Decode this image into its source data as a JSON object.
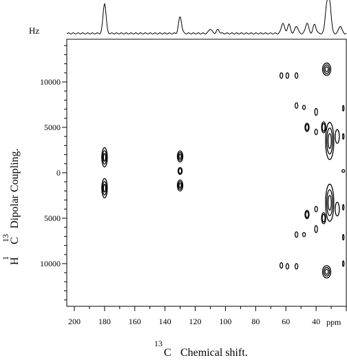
{
  "chart_data": {
    "type": "contour",
    "xaxis": {
      "label_sup": "13",
      "label_element": "C",
      "label_text": "Chemical shift.",
      "unit": "ppm",
      "range": [
        205,
        20
      ],
      "ticks": [
        200,
        180,
        160,
        140,
        120,
        100,
        80,
        60,
        40
      ]
    },
    "yaxis": {
      "label_sup1": "1",
      "label_el1": "H",
      "label_sup2": "13",
      "label_el2": "C",
      "label_text": "Dipolar Coupling.",
      "unit": "Hz",
      "range": [
        -14700,
        14700
      ],
      "ticks": [
        10000,
        5000,
        0,
        -5000,
        -10000
      ],
      "tick_labels": [
        "10000",
        "5000",
        "0",
        "5000",
        "10000"
      ]
    },
    "projection_unit_label": "Hz",
    "projection_peaks": [
      {
        "ppm": 180,
        "height": 1.0
      },
      {
        "ppm": 130,
        "height": 0.55
      },
      {
        "ppm": 110,
        "height": 0.15
      },
      {
        "ppm": 105,
        "height": 0.12
      },
      {
        "ppm": 62,
        "height": 0.35
      },
      {
        "ppm": 58,
        "height": 0.3
      },
      {
        "ppm": 53,
        "height": 0.25
      },
      {
        "ppm": 46,
        "height": 0.35
      },
      {
        "ppm": 41,
        "height": 0.3
      },
      {
        "ppm": 33,
        "height": 0.9
      },
      {
        "ppm": 31,
        "height": 1.0
      },
      {
        "ppm": 24,
        "height": 0.25
      }
    ],
    "contour_peaks": [
      {
        "ppm": 180,
        "hz": 1700,
        "rx": 4,
        "ry": 14,
        "levels": 3
      },
      {
        "ppm": 180,
        "hz": -1700,
        "rx": 4,
        "ry": 14,
        "levels": 3
      },
      {
        "ppm": 130,
        "hz": 1800,
        "rx": 4,
        "ry": 8,
        "levels": 3
      },
      {
        "ppm": 130,
        "hz": 200,
        "rx": 3,
        "ry": 5,
        "levels": 2
      },
      {
        "ppm": 130,
        "hz": -1400,
        "rx": 4,
        "ry": 8,
        "levels": 3
      },
      {
        "ppm": 63,
        "hz": 10700,
        "rx": 2,
        "ry": 4,
        "levels": 1
      },
      {
        "ppm": 59,
        "hz": 10700,
        "rx": 2,
        "ry": 4,
        "levels": 1
      },
      {
        "ppm": 53,
        "hz": 10700,
        "rx": 2,
        "ry": 4,
        "levels": 1
      },
      {
        "ppm": 33,
        "hz": 11400,
        "rx": 6,
        "ry": 9,
        "levels": 3
      },
      {
        "ppm": 53,
        "hz": 7400,
        "rx": 2,
        "ry": 4,
        "levels": 1
      },
      {
        "ppm": 48,
        "hz": 7200,
        "rx": 2,
        "ry": 3,
        "levels": 1
      },
      {
        "ppm": 40,
        "hz": 6700,
        "rx": 2,
        "ry": 5,
        "levels": 1
      },
      {
        "ppm": 46,
        "hz": 5000,
        "rx": 3,
        "ry": 6,
        "levels": 2
      },
      {
        "ppm": 40,
        "hz": 4500,
        "rx": 2,
        "ry": 4,
        "levels": 1
      },
      {
        "ppm": 35,
        "hz": 5000,
        "rx": 3,
        "ry": 8,
        "levels": 2
      },
      {
        "ppm": 31,
        "hz": 3500,
        "rx": 6,
        "ry": 27,
        "levels": 3
      },
      {
        "ppm": 26,
        "hz": 4000,
        "rx": 3,
        "ry": 10,
        "levels": 1
      },
      {
        "ppm": 22,
        "hz": 7100,
        "rx": 1,
        "ry": 4,
        "levels": 1
      },
      {
        "ppm": 22,
        "hz": 4000,
        "rx": 1,
        "ry": 4,
        "levels": 1
      },
      {
        "ppm": 22,
        "hz": 200,
        "rx": 2,
        "ry": 2,
        "levels": 1
      },
      {
        "ppm": 31,
        "hz": -3300,
        "rx": 6,
        "ry": 27,
        "levels": 3
      },
      {
        "ppm": 26,
        "hz": -4000,
        "rx": 3,
        "ry": 10,
        "levels": 1
      },
      {
        "ppm": 22,
        "hz": -3800,
        "rx": 1,
        "ry": 4,
        "levels": 1
      },
      {
        "ppm": 46,
        "hz": -4600,
        "rx": 3,
        "ry": 6,
        "levels": 2
      },
      {
        "ppm": 40,
        "hz": -4000,
        "rx": 2,
        "ry": 4,
        "levels": 1
      },
      {
        "ppm": 35,
        "hz": -5000,
        "rx": 3,
        "ry": 8,
        "levels": 2
      },
      {
        "ppm": 40,
        "hz": -6200,
        "rx": 2,
        "ry": 5,
        "levels": 1
      },
      {
        "ppm": 53,
        "hz": -6800,
        "rx": 2,
        "ry": 4,
        "levels": 1
      },
      {
        "ppm": 48,
        "hz": -6800,
        "rx": 2,
        "ry": 3,
        "levels": 1
      },
      {
        "ppm": 22,
        "hz": -7100,
        "rx": 1,
        "ry": 4,
        "levels": 1
      },
      {
        "ppm": 63,
        "hz": -10200,
        "rx": 2,
        "ry": 4,
        "levels": 1
      },
      {
        "ppm": 59,
        "hz": -10300,
        "rx": 2,
        "ry": 4,
        "levels": 1
      },
      {
        "ppm": 53,
        "hz": -10300,
        "rx": 2,
        "ry": 4,
        "levels": 1
      },
      {
        "ppm": 33,
        "hz": -10900,
        "rx": 6,
        "ry": 9,
        "levels": 3
      },
      {
        "ppm": 22,
        "hz": -10000,
        "rx": 1,
        "ry": 4,
        "levels": 1
      }
    ]
  }
}
